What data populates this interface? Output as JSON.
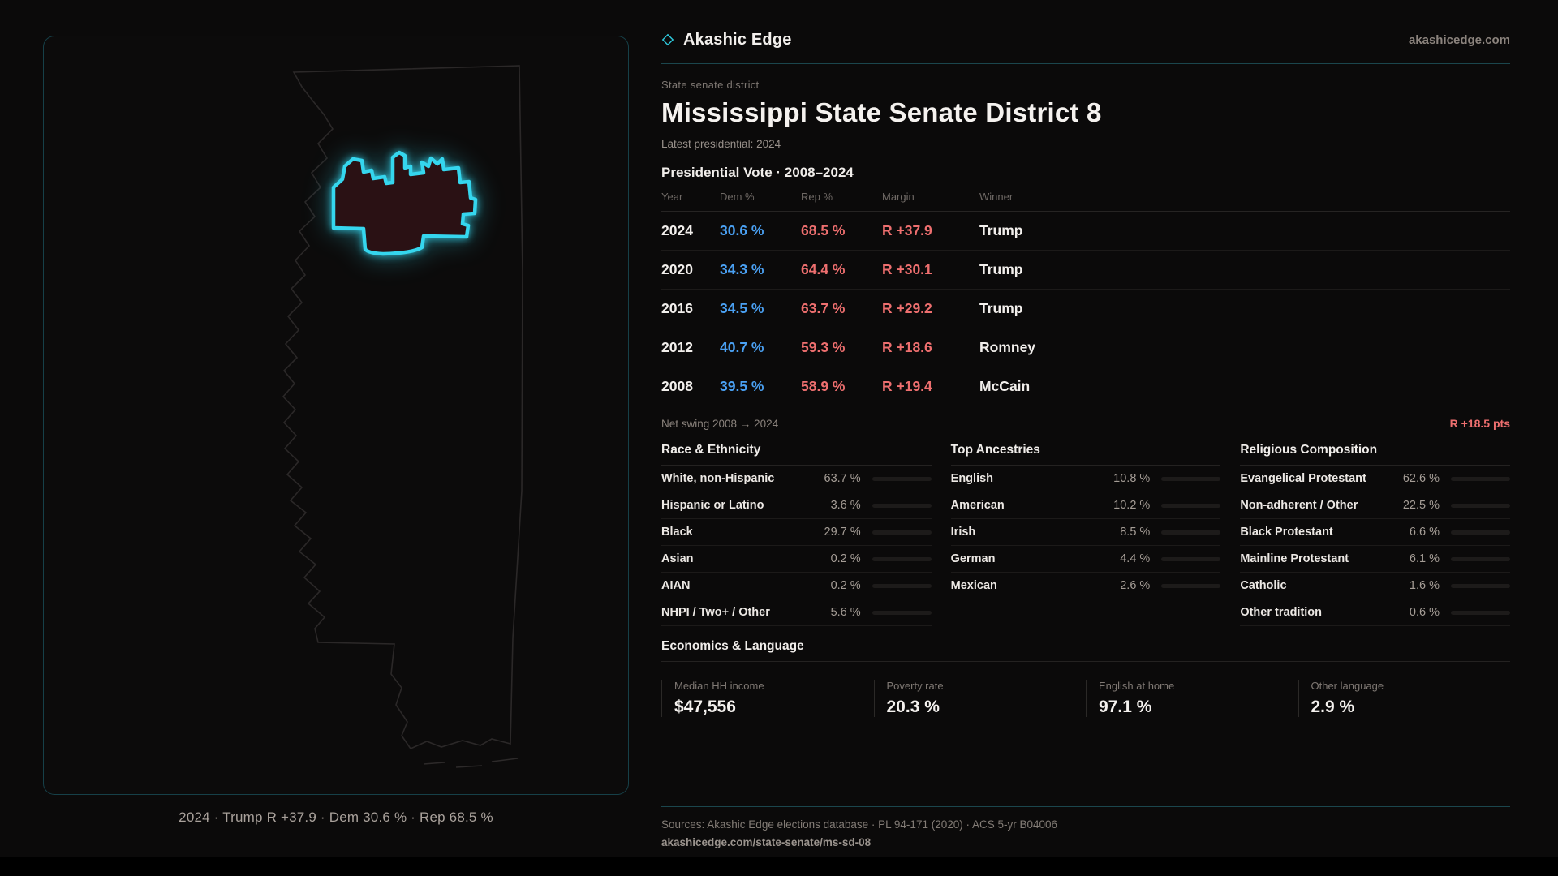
{
  "brand": {
    "name": "Akashic Edge",
    "domain": "akashicedge.com",
    "accent": "#2ec9dd"
  },
  "header": {
    "kicker": "State senate district",
    "title": "Mississippi State Senate District 8",
    "latest": "Latest presidential: 2024"
  },
  "map": {
    "caption": "2024 · Trump R +37.9 · Dem 30.6 % · Rep 68.5 %",
    "state_stroke": "#2d2a2a",
    "district_fill": "#2a1114",
    "district_stroke": "#35d6ee"
  },
  "vote_table": {
    "title": "Presidential Vote · 2008–2024",
    "columns": {
      "year": "Year",
      "dem": "Dem %",
      "rep": "Rep %",
      "margin": "Margin",
      "winner": "Winner"
    },
    "rows": [
      {
        "year": "2024",
        "dem": "30.6 %",
        "rep": "68.5 %",
        "margin": "R +37.9",
        "winner": "Trump"
      },
      {
        "year": "2020",
        "dem": "34.3 %",
        "rep": "64.4 %",
        "margin": "R +30.1",
        "winner": "Trump"
      },
      {
        "year": "2016",
        "dem": "34.5 %",
        "rep": "63.7 %",
        "margin": "R +29.2",
        "winner": "Trump"
      },
      {
        "year": "2012",
        "dem": "40.7 %",
        "rep": "59.3 %",
        "margin": "R +18.6",
        "winner": "Romney"
      },
      {
        "year": "2008",
        "dem": "39.5 %",
        "rep": "58.9 %",
        "margin": "R +19.4",
        "winner": "McCain"
      }
    ],
    "net_swing_label": "Net swing 2008 → 2024",
    "net_swing_value": "R +18.5 pts"
  },
  "demographics": {
    "race": {
      "title": "Race & Ethnicity",
      "rows": [
        {
          "label": "White, non-Hispanic",
          "value": "63.7 %",
          "pct": 63.7
        },
        {
          "label": "Hispanic or Latino",
          "value": "3.6 %",
          "pct": 3.6
        },
        {
          "label": "Black",
          "value": "29.7 %",
          "pct": 29.7
        },
        {
          "label": "Asian",
          "value": "0.2 %",
          "pct": 0.2
        },
        {
          "label": "AIAN",
          "value": "0.2 %",
          "pct": 0.2
        },
        {
          "label": "NHPI / Two+ / Other",
          "value": "5.6 %",
          "pct": 5.6
        }
      ]
    },
    "ancestries": {
      "title": "Top Ancestries",
      "rows": [
        {
          "label": "English",
          "value": "10.8 %",
          "pct": 10.8
        },
        {
          "label": "American",
          "value": "10.2 %",
          "pct": 10.2
        },
        {
          "label": "Irish",
          "value": "8.5 %",
          "pct": 8.5
        },
        {
          "label": "German",
          "value": "4.4 %",
          "pct": 4.4
        },
        {
          "label": "Mexican",
          "value": "2.6 %",
          "pct": 2.6
        }
      ]
    },
    "religion": {
      "title": "Religious Composition",
      "rows": [
        {
          "label": "Evangelical Protestant",
          "value": "62.6 %",
          "pct": 62.6
        },
        {
          "label": "Non-adherent / Other",
          "value": "22.5 %",
          "pct": 22.5
        },
        {
          "label": "Black Protestant",
          "value": "6.6 %",
          "pct": 6.6
        },
        {
          "label": "Mainline Protestant",
          "value": "6.1 %",
          "pct": 6.1
        },
        {
          "label": "Catholic",
          "value": "1.6 %",
          "pct": 1.6
        },
        {
          "label": "Other tradition",
          "value": "0.6 %",
          "pct": 0.6
        }
      ]
    }
  },
  "economics": {
    "title": "Economics & Language",
    "stats": [
      {
        "label": "Median HH income",
        "value": "$47,556"
      },
      {
        "label": "Poverty rate",
        "value": "20.3 %"
      },
      {
        "label": "English at home",
        "value": "97.1 %"
      },
      {
        "label": "Other language",
        "value": "2.9 %"
      }
    ]
  },
  "footer": {
    "sources": "Sources: Akashic Edge elections database · PL 94-171 (2020) · ACS 5-yr B04006",
    "permalink": "akashicedge.com/state-senate/ms-sd-08"
  }
}
